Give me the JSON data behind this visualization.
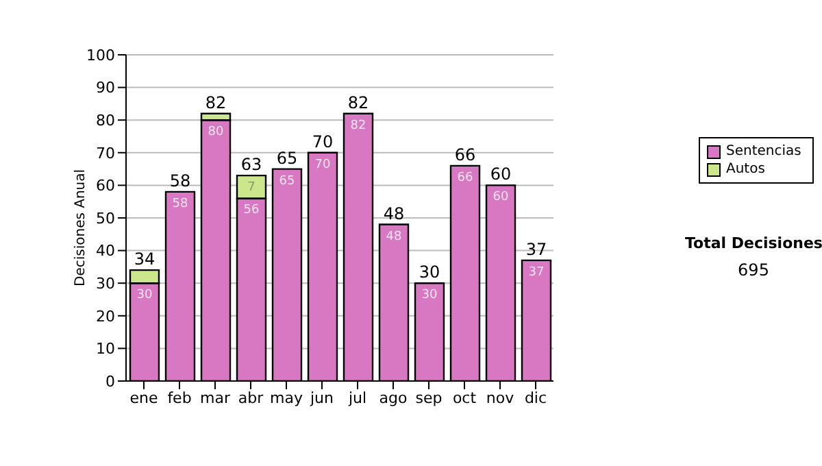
{
  "chart_data": {
    "type": "bar",
    "stacked": true,
    "ylabel": "Decisiones Anual",
    "categories": [
      "ene",
      "feb",
      "mar",
      "abr",
      "may",
      "jun",
      "jul",
      "ago",
      "sep",
      "oct",
      "nov",
      "dic"
    ],
    "series": [
      {
        "name": "Sentencias",
        "color": "#d877c2",
        "values": [
          30,
          58,
          80,
          56,
          65,
          70,
          82,
          48,
          30,
          66,
          60,
          37
        ],
        "value_labels": [
          "30",
          "58",
          "80",
          "56",
          "65",
          "70",
          "82",
          "48",
          "30",
          "66",
          "60",
          "37"
        ]
      },
      {
        "name": "Autos",
        "color": "#cce68c",
        "values": [
          4,
          0,
          2,
          7,
          0,
          0,
          0,
          0,
          0,
          0,
          0,
          0
        ],
        "value_labels": [
          null,
          null,
          null,
          "7",
          null,
          null,
          null,
          null,
          null,
          null,
          null,
          null
        ]
      }
    ],
    "totals": [
      "34",
      "58",
      "82",
      "63",
      "65",
      "70",
      "82",
      "48",
      "30",
      "66",
      "60",
      "37"
    ],
    "ylim": [
      0,
      100
    ],
    "yticks": [
      0,
      10,
      20,
      30,
      40,
      50,
      60,
      70,
      80,
      90,
      100
    ],
    "grid": "y",
    "legend": "right",
    "annotations": [
      "Total Decisiones",
      "695"
    ]
  }
}
